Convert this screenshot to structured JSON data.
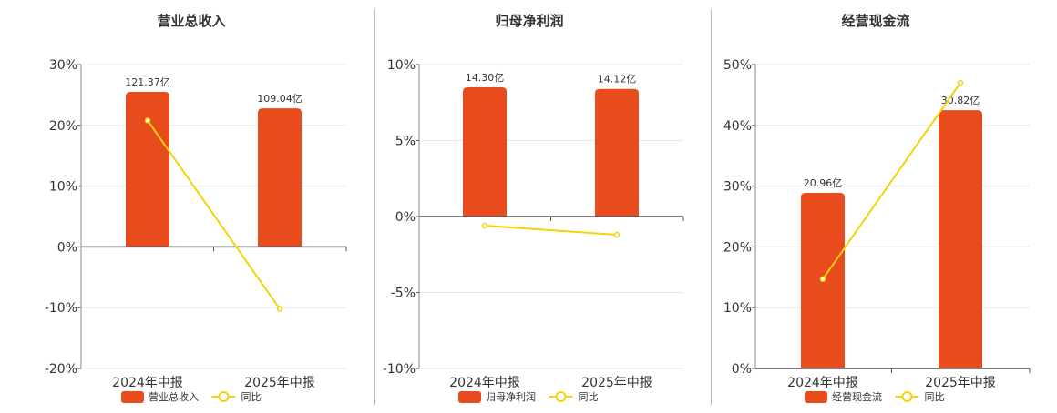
{
  "colors": {
    "bar": "#E84B1C",
    "line": "#F5D20A",
    "grid": "#e6e6ee",
    "axis": "#555555"
  },
  "chart_data": [
    {
      "type": "bar",
      "title": "营业总收入",
      "categories": [
        "2024年中报",
        "2025年中报"
      ],
      "ylim": [
        -20,
        30
      ],
      "yticks": [
        -20,
        -10,
        0,
        10,
        20,
        30
      ],
      "ytick_labels": [
        "-20%",
        "-10%",
        "0%",
        "10%",
        "20%",
        "30%"
      ],
      "series": [
        {
          "name": "营业总收入",
          "type": "bar",
          "values": [
            25.5,
            22.8
          ],
          "labels": [
            "121.37亿",
            "109.04亿"
          ]
        },
        {
          "name": "同比",
          "type": "line",
          "values": [
            20.8,
            -10.2
          ]
        }
      ],
      "legend": "bottom"
    },
    {
      "type": "bar",
      "title": "归母净利润",
      "categories": [
        "2024年中报",
        "2025年中报"
      ],
      "ylim": [
        -10,
        10
      ],
      "yticks": [
        -10,
        -5,
        0,
        5,
        10
      ],
      "ytick_labels": [
        "-10%",
        "-5%",
        "0%",
        "5%",
        "10%"
      ],
      "series": [
        {
          "name": "归母净利润",
          "type": "bar",
          "values": [
            8.5,
            8.4
          ],
          "labels": [
            "14.30亿",
            "14.12亿"
          ]
        },
        {
          "name": "同比",
          "type": "line",
          "values": [
            -0.6,
            -1.2
          ]
        }
      ],
      "legend": "bottom"
    },
    {
      "type": "bar",
      "title": "经营现金流",
      "categories": [
        "2024年中报",
        "2025年中报"
      ],
      "ylim": [
        0,
        50
      ],
      "yticks": [
        0,
        10,
        20,
        30,
        40,
        50
      ],
      "ytick_labels": [
        "0%",
        "10%",
        "20%",
        "30%",
        "40%",
        "50%"
      ],
      "series": [
        {
          "name": "经营现金流",
          "type": "bar",
          "values": [
            28.9,
            42.5
          ],
          "labels": [
            "20.96亿",
            "30.82亿"
          ]
        },
        {
          "name": "同比",
          "type": "line",
          "values": [
            14.7,
            47.0
          ]
        }
      ],
      "legend": "bottom"
    }
  ]
}
